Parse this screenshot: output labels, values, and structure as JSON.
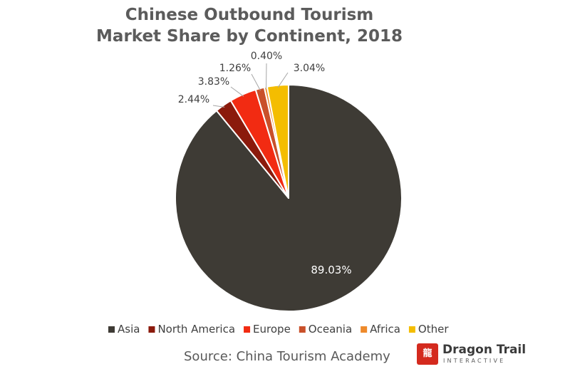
{
  "chart_data": {
    "type": "pie",
    "title": [
      "Chinese Outbound Tourism",
      "Market Share by Continent, 2018"
    ],
    "slices": [
      {
        "label": "Asia",
        "value": 89.03,
        "display": "89.03%",
        "color": "#3e3b35"
      },
      {
        "label": "North America",
        "value": 2.44,
        "display": "2.44%",
        "color": "#8b1a0c"
      },
      {
        "label": "Europe",
        "value": 3.83,
        "display": "3.83%",
        "color": "#f22b12"
      },
      {
        "label": "Oceania",
        "value": 1.26,
        "display": "1.26%",
        "color": "#c9502a"
      },
      {
        "label": "Africa",
        "value": 0.4,
        "display": "0.40%",
        "color": "#ee8a2c"
      },
      {
        "label": "Other",
        "value": 3.04,
        "display": "3.04%",
        "color": "#f4bd00"
      }
    ],
    "legend_position": "bottom"
  },
  "source": "Source: China Tourism Academy",
  "brand": {
    "name": "Dragon Trail",
    "sub": "INTERACTIVE",
    "logo_mark": "龍"
  }
}
